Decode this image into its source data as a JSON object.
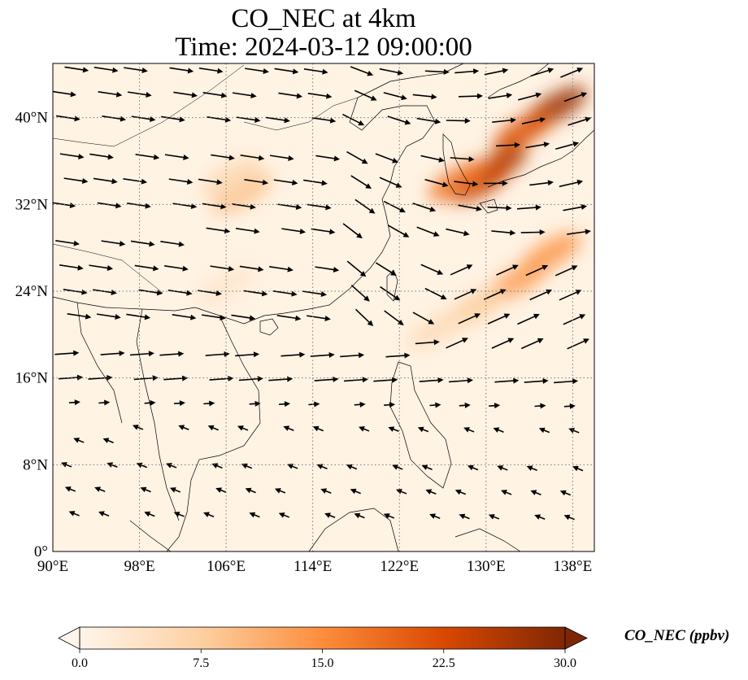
{
  "title": {
    "line1": "CO_NEC at 4km",
    "line2": "Time: 2024-03-12 09:00:00"
  },
  "map": {
    "variable": "CO_NEC",
    "extent": {
      "lon": [
        90,
        140
      ],
      "lat": [
        0,
        45
      ]
    },
    "x_ticks": [
      {
        "lon": 90,
        "label": "90°E"
      },
      {
        "lon": 98,
        "label": "98°E"
      },
      {
        "lon": 106,
        "label": "106°E"
      },
      {
        "lon": 114,
        "label": "114°E"
      },
      {
        "lon": 122,
        "label": "122°E"
      },
      {
        "lon": 130,
        "label": "130°E"
      },
      {
        "lon": 138,
        "label": "138°E"
      }
    ],
    "y_ticks": [
      {
        "lat": 0,
        "label": "0°"
      },
      {
        "lat": 8,
        "label": "8°N"
      },
      {
        "lat": 16,
        "label": "16°N"
      },
      {
        "lat": 24,
        "label": "24°N"
      },
      {
        "lat": 32,
        "label": "32°N"
      },
      {
        "lat": 40,
        "label": "40°N"
      }
    ],
    "gridlines": true,
    "plume_regions": [
      {
        "lon": 136.5,
        "lat": 41.0,
        "level": 28
      },
      {
        "lon": 133.5,
        "lat": 38.8,
        "level": 22
      },
      {
        "lon": 131.0,
        "lat": 35.5,
        "level": 26
      },
      {
        "lon": 129.5,
        "lat": 34.0,
        "level": 24
      },
      {
        "lon": 127.5,
        "lat": 34.2,
        "level": 18
      },
      {
        "lon": 136.0,
        "lat": 27.5,
        "level": 14
      },
      {
        "lon": 133.0,
        "lat": 25.0,
        "level": 13
      },
      {
        "lon": 129.0,
        "lat": 22.5,
        "level": 8
      },
      {
        "lon": 125.5,
        "lat": 20.5,
        "level": 5
      },
      {
        "lon": 107.5,
        "lat": 33.0,
        "level": 9
      },
      {
        "lon": 106.5,
        "lat": 34.5,
        "level": 6
      },
      {
        "lon": 106.0,
        "lat": 24.5,
        "level": 3
      }
    ]
  },
  "colorbar": {
    "label": "CO_NEC (ppbv)",
    "min": 0,
    "max": 30,
    "ticks": [
      "0.0",
      "7.5",
      "15.0",
      "22.5",
      "30.0"
    ],
    "colormap": [
      "#fff5eb",
      "#fdd0a2",
      "#fd8d3c",
      "#d94801",
      "#7f2704"
    ],
    "extend": "both"
  }
}
